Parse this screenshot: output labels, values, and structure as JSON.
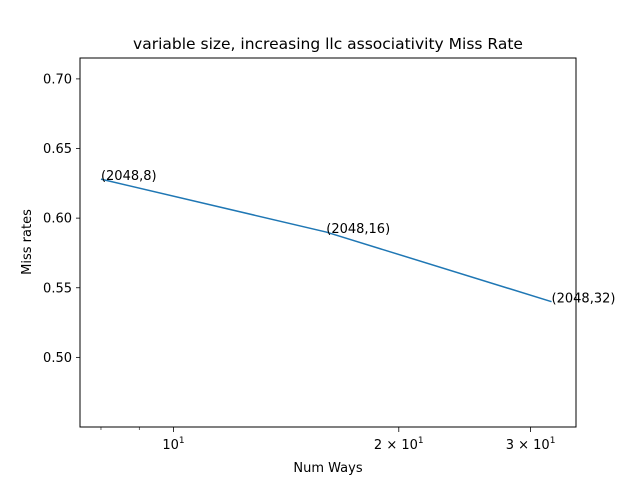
{
  "chart_data": {
    "type": "line",
    "title": "variable size, increasing llc associativity Miss Rate",
    "xlabel": "Num Ways",
    "ylabel": "Miss rates",
    "xscale": "log",
    "xlim": [
      7.5,
      34.5
    ],
    "ylim": [
      0.45,
      0.715
    ],
    "grid": false,
    "color": "#1f77b4",
    "x_ticks": [
      {
        "value": 10,
        "base": "10",
        "exp": "1",
        "coef": ""
      },
      {
        "value": 20,
        "base": "10",
        "exp": "1",
        "coef": "2 × "
      },
      {
        "value": 30,
        "base": "10",
        "exp": "1",
        "coef": "3 × "
      }
    ],
    "x_minor_ticks": [
      8,
      9,
      40
    ],
    "y_ticks": [
      "0.50",
      "0.55",
      "0.60",
      "0.65",
      "0.70"
    ],
    "series": [
      {
        "x": [
          8,
          16,
          32
        ],
        "y": [
          0.628,
          0.59,
          0.54
        ],
        "labels": [
          "(2048,8)",
          "(2048,16)",
          "(2048,32)"
        ]
      }
    ]
  }
}
